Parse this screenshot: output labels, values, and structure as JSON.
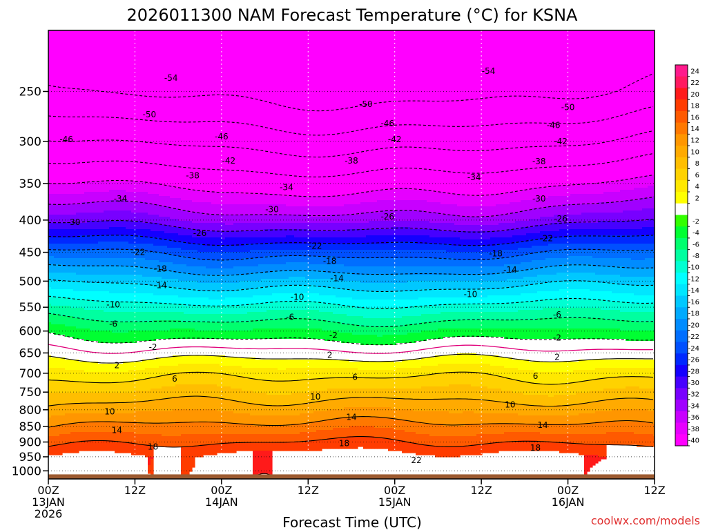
{
  "chart_data": {
    "type": "heatmap",
    "title": "2026011300 NAM Forecast Temperature (°C) for KSNA",
    "xlabel": "Forecast Time (UTC)",
    "ylabel": "",
    "credit": "coolwx.com/models",
    "x_hours": [
      0,
      12,
      24,
      36,
      48,
      60,
      72,
      84
    ],
    "x_tick_labels": [
      [
        "00Z",
        "13JAN",
        "2026"
      ],
      [
        "12Z"
      ],
      [
        "00Z",
        "14JAN"
      ],
      [
        "12Z"
      ],
      [
        "00Z",
        "15JAN"
      ],
      [
        "12Z"
      ],
      [
        "00Z",
        "16JAN"
      ],
      [
        "12Z"
      ]
    ],
    "y_pressure_ticks": [
      250,
      300,
      350,
      400,
      450,
      500,
      550,
      600,
      650,
      700,
      750,
      800,
      850,
      900,
      950,
      1000
    ],
    "y_tick_labels": [
      "250",
      "300",
      "350",
      "400",
      "450",
      "500",
      "550",
      "600",
      "650",
      "700",
      "750",
      "800",
      "850",
      "900",
      "950",
      "1000"
    ],
    "ylim_hpa": [
      200,
      1030
    ],
    "surface_hpa": 1013,
    "colorbar_ticks": [
      24,
      22,
      20,
      18,
      16,
      14,
      12,
      10,
      8,
      6,
      4,
      2,
      -2,
      -4,
      -6,
      -8,
      -10,
      -12,
      -14,
      -16,
      -18,
      -20,
      -22,
      -24,
      -26,
      -28,
      -30,
      -32,
      -34,
      -36,
      -38,
      -40
    ],
    "colorbar_labels": [
      "24",
      "22",
      "20",
      "18",
      "16",
      "14",
      "12",
      "10",
      "8",
      "6",
      "4",
      "2",
      "-2",
      "-4",
      "-6",
      "-8",
      "-10",
      "-12",
      "-14",
      "-16",
      "-18",
      "-20",
      "-22",
      "-24",
      "-26",
      "-28",
      "-30",
      "-32",
      "-34",
      "-36",
      "-38",
      "-40"
    ],
    "contour_levels": [
      -54,
      -50,
      -46,
      -42,
      -38,
      -34,
      -30,
      -26,
      -22,
      -18,
      -14,
      -10,
      -6,
      -2,
      2,
      6,
      10,
      14,
      18,
      22
    ],
    "profile": {
      "pressure_hpa": [
        200,
        250,
        300,
        350,
        400,
        450,
        500,
        550,
        600,
        650,
        700,
        750,
        800,
        850,
        900,
        950,
        1000,
        1013
      ],
      "temp_c": [
        -58,
        -53,
        -45,
        -37,
        -30,
        -21,
        -14,
        -8,
        -3,
        1,
        5,
        8,
        11,
        14,
        17,
        20,
        20,
        20
      ]
    },
    "contour_labels": [
      {
        "text": "-54",
        "hour": 17,
        "hpa": 238
      },
      {
        "text": "-54",
        "hour": 61,
        "hpa": 232
      },
      {
        "text": "-50",
        "hour": 14,
        "hpa": 272
      },
      {
        "text": "-50",
        "hour": 44,
        "hpa": 262
      },
      {
        "text": "-50",
        "hour": 72,
        "hpa": 265
      },
      {
        "text": "-46",
        "hour": 2.5,
        "hpa": 298
      },
      {
        "text": "-46",
        "hour": 24,
        "hpa": 295
      },
      {
        "text": "-46",
        "hour": 47,
        "hpa": 281
      },
      {
        "text": "-46",
        "hour": 70,
        "hpa": 283
      },
      {
        "text": "-42",
        "hour": 25,
        "hpa": 322
      },
      {
        "text": "-42",
        "hour": 48,
        "hpa": 298
      },
      {
        "text": "-42",
        "hour": 71,
        "hpa": 300
      },
      {
        "text": "-38",
        "hour": 20,
        "hpa": 340
      },
      {
        "text": "-38",
        "hour": 42,
        "hpa": 322
      },
      {
        "text": "-38",
        "hour": 68,
        "hpa": 323
      },
      {
        "text": "-34",
        "hour": 10,
        "hpa": 370
      },
      {
        "text": "-34",
        "hour": 33,
        "hpa": 355
      },
      {
        "text": "-34",
        "hour": 59,
        "hpa": 342
      },
      {
        "text": "-30",
        "hour": 3.5,
        "hpa": 403
      },
      {
        "text": "-30",
        "hour": 31,
        "hpa": 385
      },
      {
        "text": "-30",
        "hour": 68,
        "hpa": 370
      },
      {
        "text": "-26",
        "hour": 21,
        "hpa": 420
      },
      {
        "text": "-26",
        "hour": 47,
        "hpa": 395
      },
      {
        "text": "-26",
        "hour": 71,
        "hpa": 398
      },
      {
        "text": "-22",
        "hour": 12.5,
        "hpa": 450
      },
      {
        "text": "-22",
        "hour": 37,
        "hpa": 440
      },
      {
        "text": "-22",
        "hour": 69,
        "hpa": 428
      },
      {
        "text": "-18",
        "hour": 15.5,
        "hpa": 478
      },
      {
        "text": "-18",
        "hour": 39,
        "hpa": 465
      },
      {
        "text": "-18",
        "hour": 62,
        "hpa": 452
      },
      {
        "text": "-14",
        "hour": 15.5,
        "hpa": 508
      },
      {
        "text": "-14",
        "hour": 40,
        "hpa": 495
      },
      {
        "text": "-14",
        "hour": 64,
        "hpa": 480
      },
      {
        "text": "-10",
        "hour": 9,
        "hpa": 545
      },
      {
        "text": "-10",
        "hour": 34.5,
        "hpa": 530
      },
      {
        "text": "-10",
        "hour": 58.5,
        "hpa": 525
      },
      {
        "text": "-6",
        "hour": 9,
        "hpa": 585
      },
      {
        "text": "-6",
        "hour": 33.5,
        "hpa": 570
      },
      {
        "text": "-6",
        "hour": 70.5,
        "hpa": 565
      },
      {
        "text": "-2",
        "hour": 14.5,
        "hpa": 636
      },
      {
        "text": "-2",
        "hour": 39.5,
        "hpa": 610
      },
      {
        "text": "-2",
        "hour": 70.5,
        "hpa": 615
      },
      {
        "text": "2",
        "hour": 9.5,
        "hpa": 680
      },
      {
        "text": "2",
        "hour": 39,
        "hpa": 655
      },
      {
        "text": "2",
        "hour": 70.5,
        "hpa": 660
      },
      {
        "text": "6",
        "hour": 17.5,
        "hpa": 715
      },
      {
        "text": "6",
        "hour": 42.5,
        "hpa": 710
      },
      {
        "text": "6",
        "hour": 67.5,
        "hpa": 707
      },
      {
        "text": "10",
        "hour": 8.5,
        "hpa": 806
      },
      {
        "text": "10",
        "hour": 37,
        "hpa": 763
      },
      {
        "text": "10",
        "hour": 64,
        "hpa": 785
      },
      {
        "text": "14",
        "hour": 9.5,
        "hpa": 862
      },
      {
        "text": "14",
        "hour": 42,
        "hpa": 822
      },
      {
        "text": "14",
        "hour": 68.5,
        "hpa": 846
      },
      {
        "text": "18",
        "hour": 14.5,
        "hpa": 916
      },
      {
        "text": "18",
        "hour": 41,
        "hpa": 905
      },
      {
        "text": "18",
        "hour": 67.5,
        "hpa": 920
      },
      {
        "text": "22",
        "hour": 51,
        "hpa": 962
      }
    ]
  }
}
